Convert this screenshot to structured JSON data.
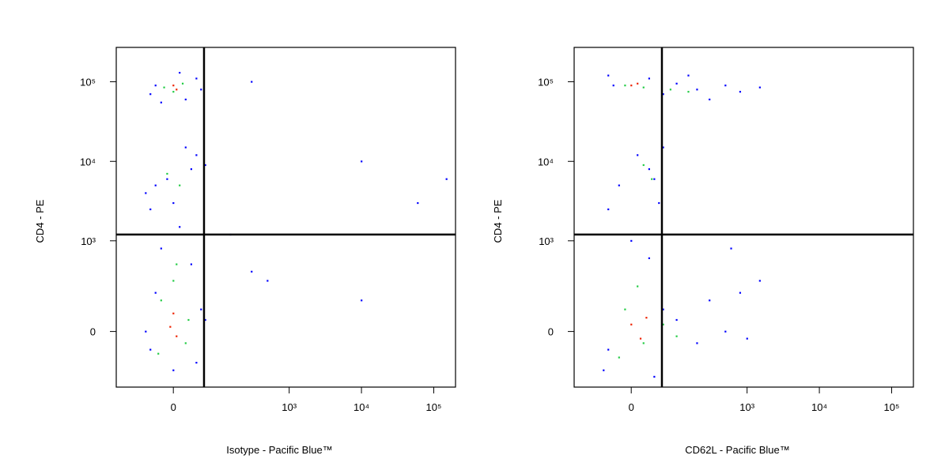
{
  "chart_data": [
    {
      "type": "scatter",
      "xlabel": "Isotype - Pacific Blue™",
      "ylabel": "CD4 - PE",
      "xscale": "biexponential",
      "yscale": "biexponential",
      "xlim": [
        -150,
        200000
      ],
      "ylim": [
        -350,
        270000
      ],
      "xticks": [
        0,
        {
          "value": 1000,
          "label": "10³"
        },
        {
          "value": 10000,
          "label": "10⁴"
        },
        {
          "value": 100000,
          "label": "10⁵"
        }
      ],
      "yticks": [
        0,
        {
          "value": 1000,
          "label": "10³"
        },
        {
          "value": 10000,
          "label": "10⁴"
        },
        {
          "value": 100000,
          "label": "10⁵"
        }
      ],
      "gates": {
        "x": 57,
        "y": 1200
      },
      "series": [
        {
          "color": "#0000ff",
          "x": [
            -30,
            20,
            40,
            -40,
            10,
            50,
            -20,
            -30,
            30,
            0,
            40,
            -40,
            20,
            -10,
            60,
            -50,
            10,
            -20,
            30,
            -40,
            50,
            -30,
            40,
            0,
            60,
            -50,
            300,
            500,
            10000,
            60000,
            150000,
            300,
            10000,
            150
          ],
          "y": [
            90000,
            60000,
            110000,
            70000,
            130000,
            80000,
            55000,
            5000,
            8000,
            3000,
            12000,
            2500,
            15000,
            6000,
            9000,
            4000,
            1500,
            800,
            500,
            -80,
            100,
            200,
            -150,
            -200,
            50,
            0,
            400,
            300,
            150,
            3000,
            6000,
            100000,
            10000,
            1200
          ]
        },
        {
          "color": "#22cc44",
          "x": [
            -15,
            15,
            0,
            -10,
            10,
            -20,
            20,
            0,
            25,
            -25,
            5
          ],
          "y": [
            85000,
            95000,
            75000,
            7000,
            5000,
            150,
            -50,
            300,
            50,
            -100,
            500
          ]
        },
        {
          "color": "#ee2200",
          "x": [
            0,
            5,
            -5,
            5,
            0
          ],
          "y": [
            90000,
            80000,
            20,
            -20,
            80
          ]
        }
      ]
    },
    {
      "type": "scatter",
      "xlabel": "CD62L - Pacific Blue™",
      "ylabel": "CD4 - PE",
      "xscale": "biexponential",
      "yscale": "biexponential",
      "xlim": [
        -150,
        200000
      ],
      "ylim": [
        -350,
        270000
      ],
      "xticks": [
        0,
        {
          "value": 1000,
          "label": "10³"
        },
        {
          "value": 10000,
          "label": "10⁴"
        },
        {
          "value": 100000,
          "label": "10⁵"
        }
      ],
      "yticks": [
        0,
        {
          "value": 1000,
          "label": "10³"
        },
        {
          "value": 10000,
          "label": "10⁴"
        },
        {
          "value": 100000,
          "label": "10⁵"
        }
      ],
      "gates": {
        "x": 57,
        "y": 1200
      },
      "series": [
        {
          "color": "#0000ff",
          "x": [
            -30,
            30,
            60,
            100,
            200,
            300,
            500,
            800,
            1500,
            -40,
            150,
            -20,
            30,
            50,
            10,
            60,
            -40,
            40,
            0,
            30,
            -40,
            60,
            100,
            200,
            300,
            500,
            800,
            1000,
            -50,
            40,
            600,
            1500
          ],
          "y": [
            90000,
            110000,
            70000,
            95000,
            80000,
            60000,
            90000,
            75000,
            85000,
            120000,
            120000,
            5000,
            8000,
            3000,
            12000,
            15000,
            2500,
            6000,
            1000,
            600,
            -80,
            100,
            50,
            -50,
            150,
            0,
            200,
            -30,
            -200,
            -250,
            800,
            300
          ]
        },
        {
          "color": "#22cc44",
          "x": [
            -10,
            20,
            80,
            150,
            20,
            35,
            -10,
            20,
            60,
            100,
            10,
            -20
          ],
          "y": [
            90000,
            85000,
            80000,
            75000,
            9000,
            6000,
            100,
            -50,
            30,
            -20,
            250,
            -120
          ]
        },
        {
          "color": "#ee2200",
          "x": [
            0,
            10,
            0,
            15,
            25
          ],
          "y": [
            90000,
            95000,
            30,
            -30,
            60
          ]
        }
      ]
    }
  ]
}
